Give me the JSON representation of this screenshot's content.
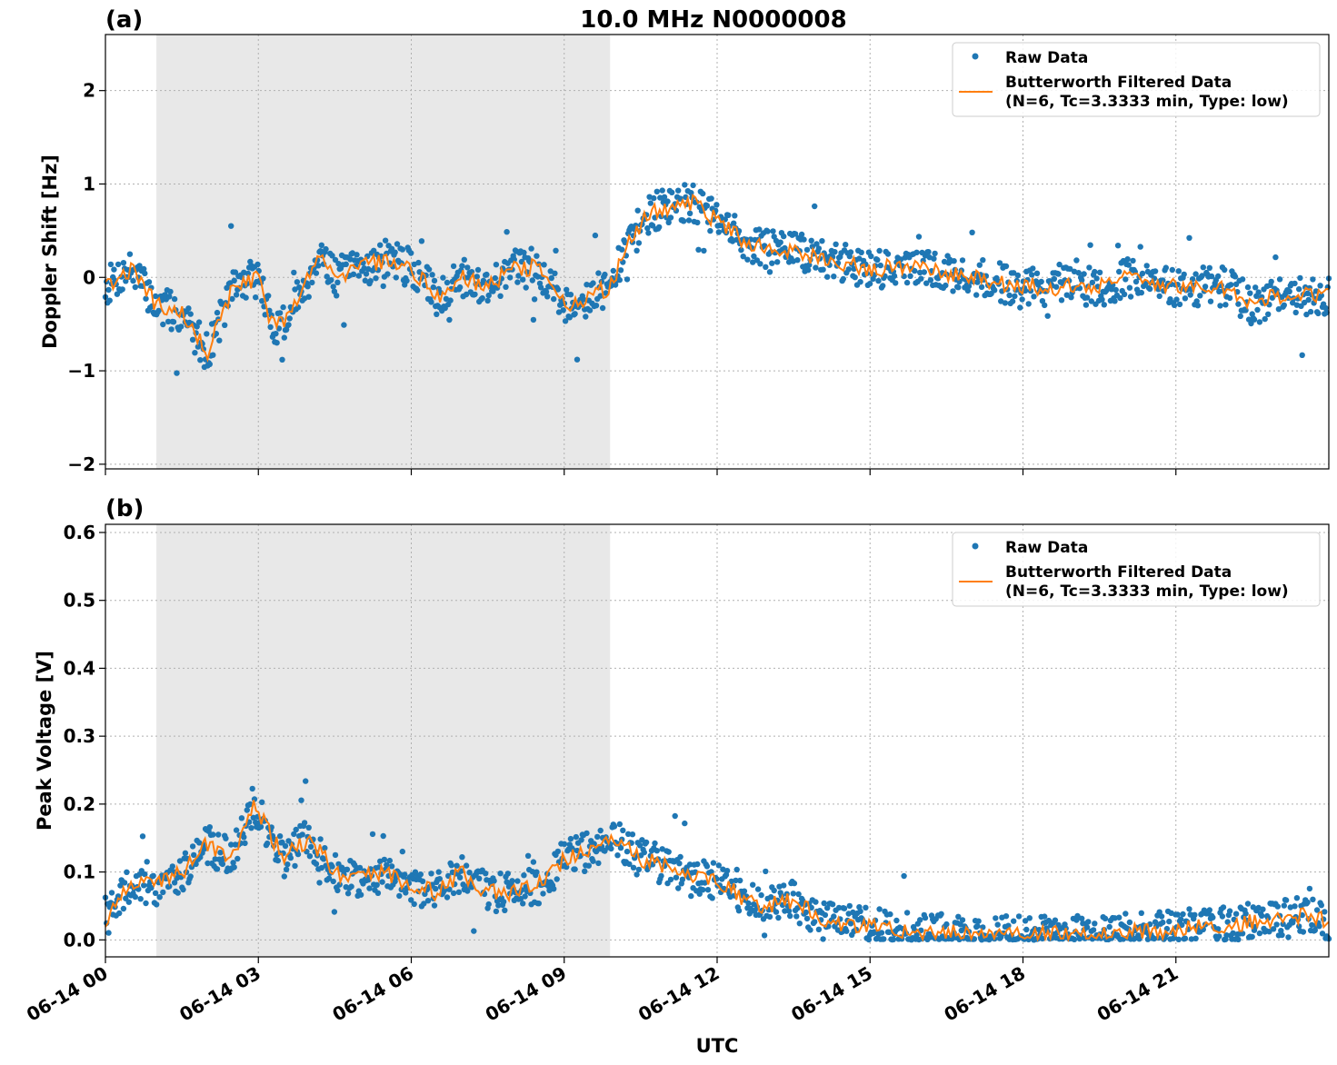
{
  "figure": {
    "title": "10.0 MHz N0000008",
    "xlabel": "UTC"
  },
  "legend": {
    "raw_label": "Raw Data",
    "filtered_label_line1": "Butterworth Filtered Data",
    "filtered_label_line2": "(N=6, Tc=3.3333 min, Type: low)"
  },
  "colors": {
    "raw": "#1f77b4",
    "filtered": "#ff7f0e",
    "night_shade": "#e8e8e8"
  },
  "chart_data": [
    {
      "type": "scatter",
      "panel_label": "(a)",
      "ylabel": "Doppler Shift [Hz]",
      "x_unit": "hours UTC on 06-14",
      "xlim": [
        0,
        24
      ],
      "ylim": [
        -2.05,
        2.6
      ],
      "yticks": [
        -2,
        -1,
        0,
        1,
        2
      ],
      "ytick_labels": [
        "−2",
        "−1",
        "0",
        "1",
        "2"
      ],
      "shaded_interval": [
        1.0,
        9.9
      ],
      "grid": true,
      "legend_position": "top-right",
      "series": [
        {
          "name": "Raw Data",
          "style": "points",
          "x": [
            0,
            0.5,
            1,
            1.5,
            1.75,
            2,
            2.5,
            3,
            3.25,
            3.5,
            4,
            4.2,
            4.5,
            5,
            5.5,
            6,
            6.5,
            7,
            7.5,
            8,
            8.5,
            9,
            9.5,
            9.9,
            10.3,
            10.7,
            11,
            11.5,
            12,
            12.5,
            13,
            13.5,
            14,
            15,
            16,
            17,
            18,
            19,
            19.7,
            20,
            21,
            22,
            22.5,
            23,
            24
          ],
          "y": [
            -0.1,
            0.1,
            -0.3,
            -0.4,
            -0.6,
            -0.8,
            -0.1,
            0.0,
            -0.5,
            -0.5,
            0.0,
            0.3,
            0.0,
            0.1,
            0.2,
            0.1,
            -0.2,
            0.0,
            -0.1,
            0.1,
            0.1,
            -0.3,
            -0.2,
            -0.1,
            0.4,
            0.7,
            0.75,
            0.8,
            0.6,
            0.4,
            0.3,
            0.3,
            0.2,
            0.1,
            0.1,
            0.0,
            -0.1,
            -0.1,
            -0.1,
            0.0,
            -0.1,
            -0.1,
            -0.3,
            -0.2,
            -0.2
          ]
        },
        {
          "name": "Butterworth Filtered Data",
          "style": "line",
          "x": [
            0,
            0.5,
            1,
            1.5,
            1.75,
            2,
            2.5,
            3,
            3.25,
            3.5,
            4,
            4.2,
            4.5,
            5,
            5.5,
            6,
            6.5,
            7,
            7.5,
            8,
            8.5,
            9,
            9.5,
            9.9,
            10.3,
            10.7,
            11,
            11.5,
            12,
            12.5,
            13,
            13.5,
            14,
            15,
            16,
            17,
            18,
            19,
            19.7,
            20,
            21,
            22,
            22.5,
            23,
            24
          ],
          "y": [
            -0.1,
            0.1,
            -0.3,
            -0.4,
            -0.6,
            -0.8,
            -0.1,
            0.0,
            -0.5,
            -0.5,
            0.0,
            0.3,
            0.0,
            0.1,
            0.2,
            0.1,
            -0.2,
            0.0,
            -0.1,
            0.1,
            0.1,
            -0.3,
            -0.2,
            -0.1,
            0.4,
            0.7,
            0.75,
            0.8,
            0.6,
            0.4,
            0.3,
            0.3,
            0.2,
            0.1,
            0.1,
            0.0,
            -0.1,
            -0.1,
            -0.1,
            0.0,
            -0.1,
            -0.1,
            -0.3,
            -0.2,
            -0.2
          ]
        }
      ]
    },
    {
      "type": "scatter",
      "panel_label": "(b)",
      "ylabel": "Peak Voltage [V]",
      "x_unit": "hours UTC on 06-14",
      "xlim": [
        0,
        24
      ],
      "ylim": [
        -0.025,
        0.612
      ],
      "yticks": [
        0.0,
        0.1,
        0.2,
        0.3,
        0.4,
        0.5,
        0.6
      ],
      "ytick_labels": [
        "0.0",
        "0.1",
        "0.2",
        "0.3",
        "0.4",
        "0.5",
        "0.6"
      ],
      "shaded_interval": [
        1.0,
        9.9
      ],
      "grid": true,
      "legend_position": "top-right",
      "series": [
        {
          "name": "Raw Data",
          "style": "points",
          "x": [
            0,
            0.5,
            1,
            1.5,
            2,
            2.5,
            2.9,
            3.5,
            4,
            4.5,
            5,
            5.5,
            6,
            6.5,
            7,
            7.5,
            8,
            8.5,
            9,
            9.5,
            10,
            10.5,
            11,
            11.5,
            12,
            12.5,
            13,
            13.5,
            14,
            15,
            16,
            17,
            18,
            19,
            20,
            21,
            22,
            23,
            23.5,
            24
          ],
          "y": [
            0.03,
            0.08,
            0.08,
            0.1,
            0.14,
            0.12,
            0.2,
            0.12,
            0.15,
            0.1,
            0.09,
            0.1,
            0.08,
            0.07,
            0.1,
            0.07,
            0.07,
            0.08,
            0.12,
            0.13,
            0.15,
            0.12,
            0.11,
            0.09,
            0.09,
            0.06,
            0.05,
            0.06,
            0.03,
            0.018,
            0.012,
            0.01,
            0.008,
            0.008,
            0.01,
            0.015,
            0.022,
            0.03,
            0.035,
            0.03
          ]
        },
        {
          "name": "Butterworth Filtered Data",
          "style": "line",
          "x": [
            0,
            0.5,
            1,
            1.5,
            2,
            2.5,
            2.9,
            3.5,
            4,
            4.5,
            5,
            5.5,
            6,
            6.5,
            7,
            7.5,
            8,
            8.5,
            9,
            9.5,
            10,
            10.5,
            11,
            11.5,
            12,
            12.5,
            13,
            13.5,
            14,
            15,
            16,
            17,
            18,
            19,
            20,
            21,
            22,
            23,
            23.5,
            24
          ],
          "y": [
            0.03,
            0.08,
            0.08,
            0.1,
            0.14,
            0.12,
            0.2,
            0.12,
            0.15,
            0.1,
            0.09,
            0.1,
            0.08,
            0.07,
            0.1,
            0.07,
            0.07,
            0.08,
            0.12,
            0.13,
            0.15,
            0.12,
            0.11,
            0.09,
            0.09,
            0.06,
            0.05,
            0.06,
            0.03,
            0.018,
            0.012,
            0.01,
            0.008,
            0.008,
            0.01,
            0.015,
            0.022,
            0.03,
            0.035,
            0.03
          ]
        }
      ]
    }
  ],
  "x_ticks": {
    "values": [
      0,
      3,
      6,
      9,
      12,
      15,
      18,
      21
    ],
    "labels": [
      "06-14 00",
      "06-14 03",
      "06-14 06",
      "06-14 09",
      "06-14 12",
      "06-14 15",
      "06-14 18",
      "06-14 21"
    ]
  }
}
